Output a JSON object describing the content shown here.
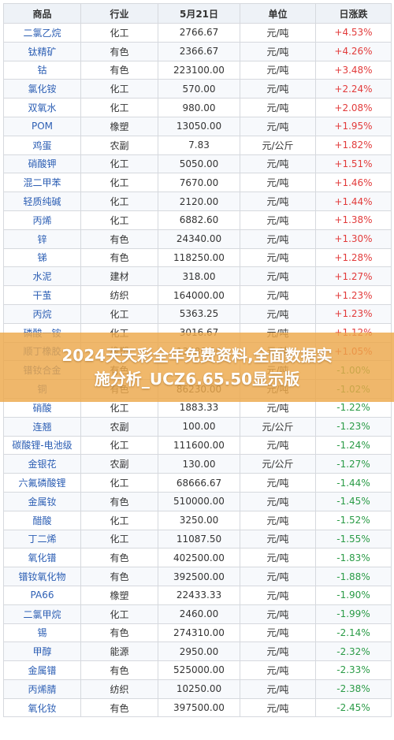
{
  "headers": [
    "商品",
    "行业",
    "5月21日",
    "单位",
    "日涨跌"
  ],
  "rows": [
    {
      "name": "二氯乙烷",
      "industry": "化工",
      "price": "2766.67",
      "unit": "元/吨",
      "change": "+4.53%",
      "dir": "up"
    },
    {
      "name": "钛精矿",
      "industry": "有色",
      "price": "2366.67",
      "unit": "元/吨",
      "change": "+4.26%",
      "dir": "up"
    },
    {
      "name": "钴",
      "industry": "有色",
      "price": "223100.00",
      "unit": "元/吨",
      "change": "+3.48%",
      "dir": "up"
    },
    {
      "name": "氯化铵",
      "industry": "化工",
      "price": "570.00",
      "unit": "元/吨",
      "change": "+2.24%",
      "dir": "up"
    },
    {
      "name": "双氧水",
      "industry": "化工",
      "price": "980.00",
      "unit": "元/吨",
      "change": "+2.08%",
      "dir": "up"
    },
    {
      "name": "POM",
      "industry": "橡塑",
      "price": "13050.00",
      "unit": "元/吨",
      "change": "+1.95%",
      "dir": "up"
    },
    {
      "name": "鸡蛋",
      "industry": "农副",
      "price": "7.83",
      "unit": "元/公斤",
      "change": "+1.82%",
      "dir": "up"
    },
    {
      "name": "硝酸钾",
      "industry": "化工",
      "price": "5050.00",
      "unit": "元/吨",
      "change": "+1.51%",
      "dir": "up"
    },
    {
      "name": "混二甲苯",
      "industry": "化工",
      "price": "7670.00",
      "unit": "元/吨",
      "change": "+1.46%",
      "dir": "up"
    },
    {
      "name": "轻质纯碱",
      "industry": "化工",
      "price": "2120.00",
      "unit": "元/吨",
      "change": "+1.44%",
      "dir": "up"
    },
    {
      "name": "丙烯",
      "industry": "化工",
      "price": "6882.60",
      "unit": "元/吨",
      "change": "+1.38%",
      "dir": "up"
    },
    {
      "name": "锌",
      "industry": "有色",
      "price": "24340.00",
      "unit": "元/吨",
      "change": "+1.30%",
      "dir": "up"
    },
    {
      "name": "锑",
      "industry": "有色",
      "price": "118250.00",
      "unit": "元/吨",
      "change": "+1.28%",
      "dir": "up"
    },
    {
      "name": "水泥",
      "industry": "建材",
      "price": "318.00",
      "unit": "元/吨",
      "change": "+1.27%",
      "dir": "up"
    },
    {
      "name": "干茧",
      "industry": "纺织",
      "price": "164000.00",
      "unit": "元/吨",
      "change": "+1.23%",
      "dir": "up"
    },
    {
      "name": "丙烷",
      "industry": "化工",
      "price": "5363.25",
      "unit": "元/吨",
      "change": "+1.23%",
      "dir": "up"
    },
    {
      "name": "磷酸一铵",
      "industry": "化工",
      "price": "3016.67",
      "unit": "元/吨",
      "change": "+1.12%",
      "dir": "up"
    },
    {
      "name": "顺丁橡胶",
      "industry": "橡塑",
      "price": "13480.00",
      "unit": "元/吨",
      "change": "+1.05%",
      "dir": "up"
    },
    {
      "name": "镨钕合金",
      "industry": "有色",
      "price": "",
      "unit": "元/吨",
      "change": "-1.00%",
      "dir": "down"
    },
    {
      "name": "铜",
      "industry": "有色",
      "price": "86230.00",
      "unit": "元/吨",
      "change": "-1.02%",
      "dir": "down"
    },
    {
      "name": "硝酸",
      "industry": "化工",
      "price": "1883.33",
      "unit": "元/吨",
      "change": "-1.22%",
      "dir": "down"
    },
    {
      "name": "连翘",
      "industry": "农副",
      "price": "100.00",
      "unit": "元/公斤",
      "change": "-1.23%",
      "dir": "down"
    },
    {
      "name": "碳酸锂-电池级",
      "industry": "化工",
      "price": "111600.00",
      "unit": "元/吨",
      "change": "-1.24%",
      "dir": "down"
    },
    {
      "name": "金银花",
      "industry": "农副",
      "price": "130.00",
      "unit": "元/公斤",
      "change": "-1.27%",
      "dir": "down"
    },
    {
      "name": "六氟磷酸锂",
      "industry": "化工",
      "price": "68666.67",
      "unit": "元/吨",
      "change": "-1.44%",
      "dir": "down"
    },
    {
      "name": "金属钕",
      "industry": "有色",
      "price": "510000.00",
      "unit": "元/吨",
      "change": "-1.45%",
      "dir": "down"
    },
    {
      "name": "醋酸",
      "industry": "化工",
      "price": "3250.00",
      "unit": "元/吨",
      "change": "-1.52%",
      "dir": "down"
    },
    {
      "name": "丁二烯",
      "industry": "化工",
      "price": "11087.50",
      "unit": "元/吨",
      "change": "-1.55%",
      "dir": "down"
    },
    {
      "name": "氧化镨",
      "industry": "有色",
      "price": "402500.00",
      "unit": "元/吨",
      "change": "-1.83%",
      "dir": "down"
    },
    {
      "name": "镨钕氧化物",
      "industry": "有色",
      "price": "392500.00",
      "unit": "元/吨",
      "change": "-1.88%",
      "dir": "down"
    },
    {
      "name": "PA66",
      "industry": "橡塑",
      "price": "22433.33",
      "unit": "元/吨",
      "change": "-1.90%",
      "dir": "down"
    },
    {
      "name": "二氯甲烷",
      "industry": "化工",
      "price": "2460.00",
      "unit": "元/吨",
      "change": "-1.99%",
      "dir": "down"
    },
    {
      "name": "锡",
      "industry": "有色",
      "price": "274310.00",
      "unit": "元/吨",
      "change": "-2.14%",
      "dir": "down"
    },
    {
      "name": "甲醇",
      "industry": "能源",
      "price": "2950.00",
      "unit": "元/吨",
      "change": "-2.32%",
      "dir": "down"
    },
    {
      "name": "金属镨",
      "industry": "有色",
      "price": "525000.00",
      "unit": "元/吨",
      "change": "-2.33%",
      "dir": "down"
    },
    {
      "name": "丙烯腈",
      "industry": "纺织",
      "price": "10250.00",
      "unit": "元/吨",
      "change": "-2.38%",
      "dir": "down"
    },
    {
      "name": "氧化钕",
      "industry": "有色",
      "price": "397500.00",
      "unit": "元/吨",
      "change": "-2.45%",
      "dir": "down"
    }
  ],
  "banner": {
    "line1": "2024天天彩全年免费资料,全面数据实",
    "line2": "施分析_UCZ6.65.50显示版"
  },
  "colors": {
    "up": "#e23b3b",
    "down": "#2a9b46",
    "name": "#2d5fb4"
  }
}
